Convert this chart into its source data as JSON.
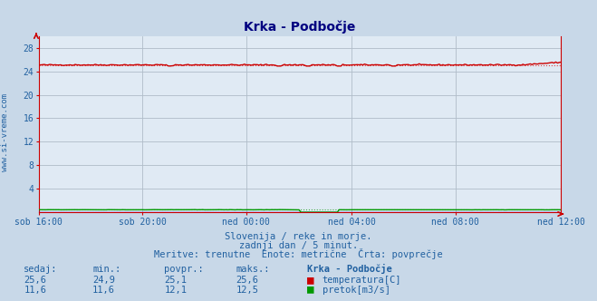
{
  "title": "Krka - Podbočje",
  "bg_color": "#c8d8e8",
  "plot_bg_color": "#e0eaf4",
  "grid_color": "#b0bcc8",
  "temp_color": "#cc0000",
  "flow_color": "#009900",
  "height_color": "#0000cc",
  "temp_avg_color": "#dd4444",
  "flow_avg_color": "#44aa44",
  "x_labels": [
    "sob 16:00",
    "sob 20:00",
    "ned 00:00",
    "ned 04:00",
    "ned 08:00",
    "ned 12:00"
  ],
  "x_ticks_norm": [
    0.0,
    0.2,
    0.4,
    0.6,
    0.8,
    1.0
  ],
  "total_points": 288,
  "ylim": [
    0,
    30
  ],
  "yticks": [
    4,
    8,
    12,
    16,
    20,
    24,
    28
  ],
  "temp_avg": 25.1,
  "flow_avg_display": 0.42,
  "subtitle1": "Slovenija / reke in morje.",
  "subtitle2": "zadnji dan / 5 minut.",
  "subtitle3": "Meritve: trenutne  Enote: metrične  Črta: povprečje",
  "label_sedaj": "sedaj:",
  "label_min": "min.:",
  "label_povpr": "povpr.:",
  "label_maks": "maks.:",
  "label_station": "Krka - Podbočje",
  "label_temp": "temperatura[C]",
  "label_flow": "pretok[m3/s]",
  "watermark": "www.si-vreme.com",
  "text_color": "#2060a0",
  "title_color": "#000080",
  "row1_vals": [
    "25,6",
    "24,9",
    "25,1",
    "25,6"
  ],
  "row2_vals": [
    "11,6",
    "11,6",
    "12,1",
    "12,5"
  ],
  "spine_color": "#cc0000",
  "axis_arrow_color": "#cc0000"
}
